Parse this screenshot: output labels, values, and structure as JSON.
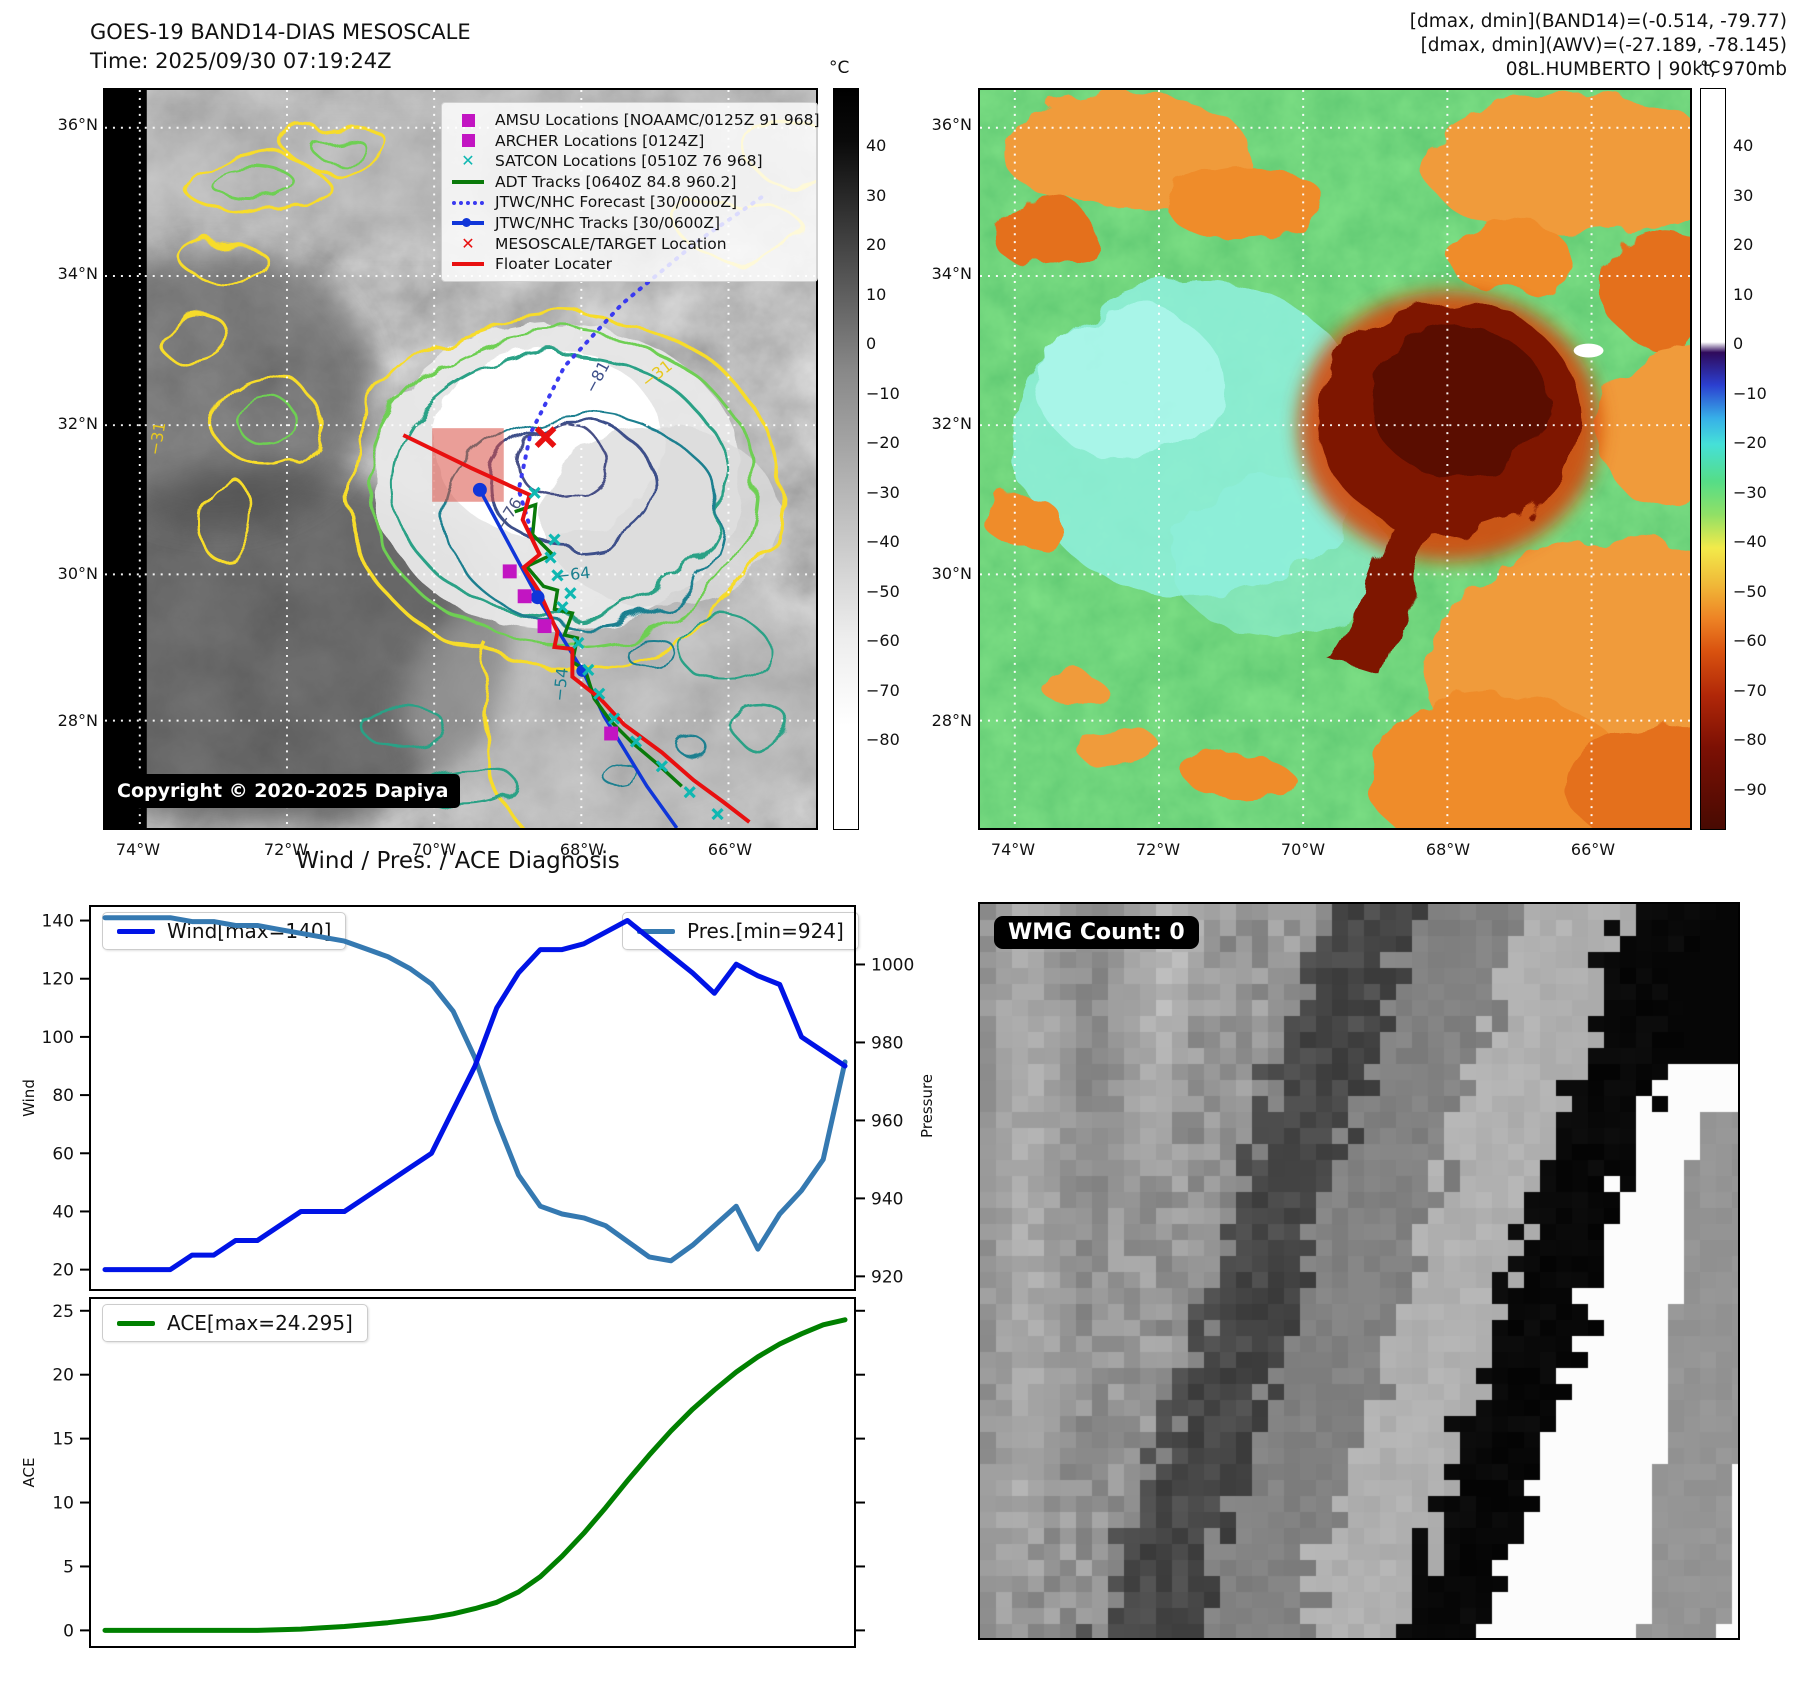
{
  "header": {
    "title_line1": "GOES-19 BAND14-DIAS MESOSCALE",
    "title_line2": "Time: 2025/09/30 07:19:24Z",
    "info_line1": "[dmax, dmin](BAND14)=(-0.514, -79.77)",
    "info_line2": "[dmax, dmin](AWV)=(-27.189, -78.145)",
    "info_line3": "08L.HUMBERTO | 90kt, 970mb"
  },
  "band14_panel": {
    "legend": [
      {
        "label": "AMSU Locations [NOAAMC/0125Z 91 968]",
        "marker": "square",
        "color": "#c215c2"
      },
      {
        "label": "ARCHER Locations [0124Z]",
        "marker": "square",
        "color": "#c215c2"
      },
      {
        "label": "SATCON Locations [0510Z 76 968]",
        "marker": "x",
        "color": "#0fb8b2"
      },
      {
        "label": "ADT Tracks [0640Z 84.8 960.2]",
        "marker": "line",
        "color": "#0a7a0a"
      },
      {
        "label": "JTWC/NHC Forecast [30/0000Z]",
        "marker": "dotted",
        "color": "#3a3af0"
      },
      {
        "label": "JTWC/NHC Tracks [30/0600Z]",
        "marker": "linedot",
        "color": "#1036d9"
      },
      {
        "label": "MESOSCALE/TARGET Location",
        "marker": "x",
        "color": "#e81010"
      },
      {
        "label": "Floater Locater",
        "marker": "line",
        "color": "#e81010"
      }
    ],
    "copyright": "Copyright © 2020-2025 Dapiya",
    "lat_labels": [
      "36°N",
      "34°N",
      "32°N",
      "30°N",
      "28°N"
    ],
    "lon_labels": [
      "74°W",
      "72°W",
      "70°W",
      "68°W",
      "66°W"
    ],
    "colorbar": {
      "unit": "°C",
      "ticks": [
        "40",
        "30",
        "20",
        "10",
        "0",
        "−10",
        "−20",
        "−30",
        "−40",
        "−50",
        "−60",
        "−70",
        "−80"
      ]
    },
    "contour_labels": [
      "−31",
      "−31",
      "−81",
      "−76",
      "−64",
      "−54"
    ]
  },
  "awv_panel": {
    "lat_labels": [
      "36°N",
      "34°N",
      "32°N",
      "30°N",
      "28°N"
    ],
    "lon_labels": [
      "74°W",
      "72°W",
      "70°W",
      "68°W",
      "66°W"
    ],
    "colorbar": {
      "unit": "°C",
      "ticks": [
        "40",
        "30",
        "20",
        "10",
        "0",
        "−10",
        "−20",
        "−30",
        "−40",
        "−50",
        "−60",
        "−70",
        "−80",
        "−90"
      ]
    }
  },
  "diagnosis": {
    "title": "Wind / Pres. / ACE Diagnosis",
    "wind_legend": "Wind[max=140]",
    "pres_legend": "Pres.[min=924]",
    "ace_legend": "ACE[max=24.295]",
    "wind_ylabel": "Wind",
    "pres_ylabel": "Pressure",
    "ace_ylabel": "ACE"
  },
  "wmg_panel": {
    "badge": "WMG Count: 0"
  },
  "chart_data": [
    {
      "type": "line",
      "title": "Wind / Pres. / ACE Diagnosis",
      "ylabel_left": "Wind",
      "ylabel_right": "Pressure",
      "ylim_left": [
        13,
        145
      ],
      "ylim_right": [
        916.5,
        1015
      ],
      "yticks_left": [
        20,
        40,
        60,
        80,
        100,
        120,
        140
      ],
      "yticks_right": [
        920,
        940,
        960,
        980,
        1000
      ],
      "series": [
        {
          "name": "Wind[max=140]",
          "axis": "left",
          "color": "#0013e6",
          "values": [
            20,
            20,
            20,
            20,
            25,
            25,
            30,
            30,
            35,
            40,
            40,
            40,
            45,
            50,
            55,
            60,
            75,
            90,
            110,
            122,
            130,
            130,
            132,
            136,
            140,
            134,
            128,
            122,
            115,
            125,
            121,
            118,
            100,
            95,
            90
          ]
        },
        {
          "name": "Pres.[min=924]",
          "axis": "right",
          "color": "#3579b1",
          "values": [
            1012,
            1012,
            1012,
            1012,
            1011,
            1011,
            1010,
            1010,
            1009,
            1008,
            1007,
            1006,
            1004,
            1002,
            999,
            995,
            988,
            976,
            960,
            946,
            938,
            936,
            935,
            933,
            929,
            925,
            924,
            928,
            933,
            938,
            927,
            936,
            942,
            950,
            975
          ]
        }
      ]
    },
    {
      "type": "line",
      "ylabel": "ACE",
      "ylim": [
        -1.3,
        26
      ],
      "yticks": [
        0,
        5,
        10,
        15,
        20,
        25
      ],
      "series": [
        {
          "name": "ACE[max=24.295]",
          "color": "#008000",
          "values": [
            0,
            0,
            0,
            0,
            0,
            0,
            0,
            0,
            0.05,
            0.1,
            0.2,
            0.3,
            0.45,
            0.6,
            0.8,
            1.0,
            1.3,
            1.7,
            2.2,
            3.0,
            4.2,
            5.8,
            7.6,
            9.6,
            11.7,
            13.7,
            15.6,
            17.3,
            18.8,
            20.2,
            21.4,
            22.4,
            23.2,
            23.9,
            24.295
          ]
        }
      ]
    }
  ]
}
